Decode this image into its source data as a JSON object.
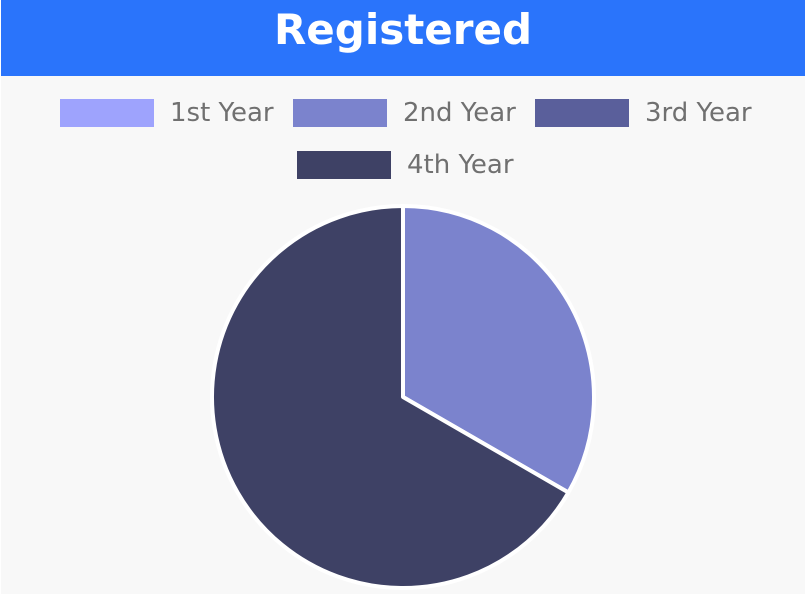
{
  "header": {
    "title": "Registered"
  },
  "colors": {
    "header_bg": "#2a74fb",
    "plot_bg": "#f8f8f8",
    "slice_border": "#ffffff"
  },
  "chart_data": {
    "type": "pie",
    "title": "Registered",
    "legend_position": "top",
    "categories": [
      "1st Year",
      "2nd Year",
      "3rd Year",
      "4th Year"
    ],
    "values": [
      0,
      1,
      0,
      2
    ],
    "colors": [
      "#9ea3fd",
      "#7b83cd",
      "#5a5f9b",
      "#3e4165"
    ]
  }
}
